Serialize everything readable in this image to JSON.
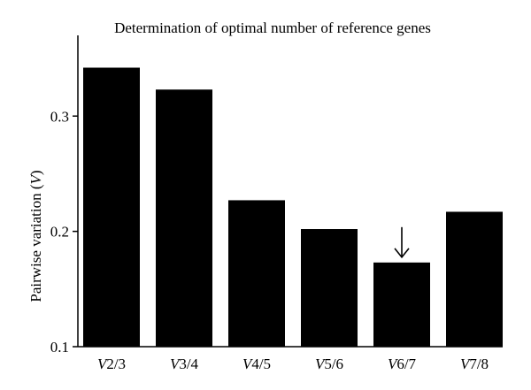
{
  "chart_data": {
    "type": "bar",
    "title": "Determination of optimal number of reference genes",
    "ylabel": "Pairwise variation (",
    "ylabel_var": "V",
    "ylabel_close": ")",
    "xlabel": "",
    "categories": [
      "V2/3",
      "V3/4",
      "V4/5",
      "V5/6",
      "V6/7",
      "V7/8"
    ],
    "category_prefix": "V",
    "category_suffixes": [
      "2/3",
      "3/4",
      "4/5",
      "5/6",
      "6/7",
      "7/8"
    ],
    "values": [
      0.342,
      0.323,
      0.227,
      0.202,
      0.173,
      0.217
    ],
    "ylim": [
      0.1,
      0.37
    ],
    "yticks": [
      0.1,
      0.2,
      0.3
    ],
    "ytick_labels": [
      "0.1",
      "0.2",
      "0.3"
    ],
    "grid": false,
    "bar_color": "#000000",
    "annotation": {
      "type": "arrow-down",
      "category": "V6/7"
    }
  }
}
